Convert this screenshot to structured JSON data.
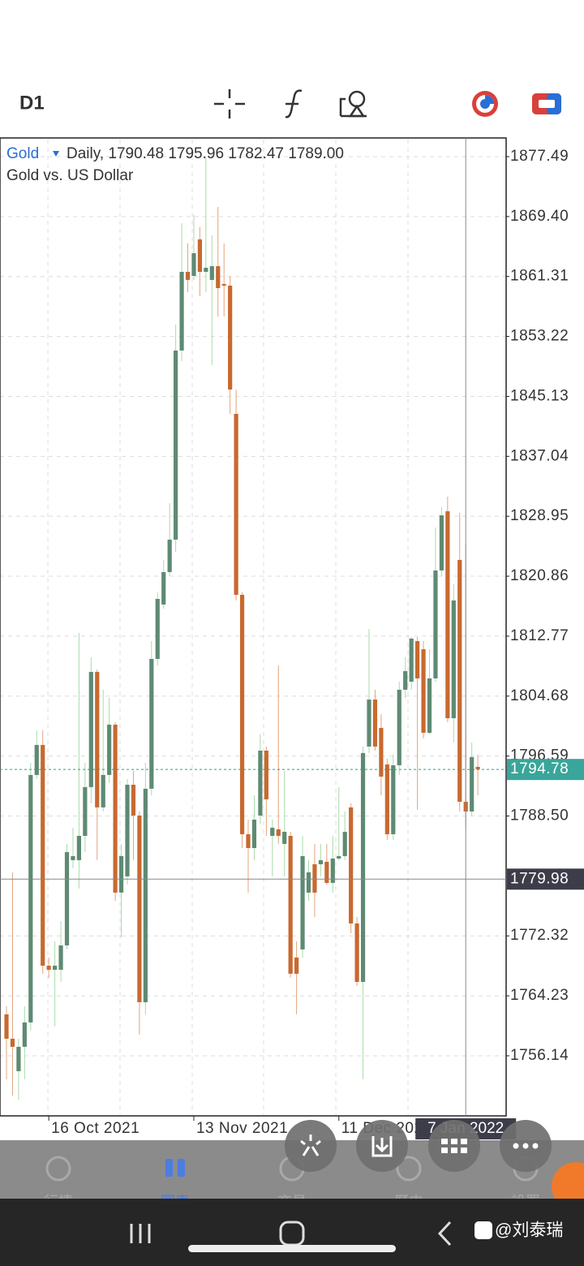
{
  "toolbar": {
    "timeframe": "D1"
  },
  "chart_data": {
    "type": "candlestick",
    "symbol": "Gold",
    "info": "Daily, 1790.48 1795.96 1782.47 1789.00",
    "description": "Gold vs. US Dollar",
    "categories": [
      null,
      null,
      null,
      null,
      null,
      null,
      null,
      "16 Oct 2021",
      null,
      null,
      null,
      null,
      null,
      null,
      null,
      null,
      null,
      null,
      null,
      null,
      null,
      null,
      null,
      null,
      null,
      null,
      null,
      null,
      null,
      null,
      null,
      "13 Nov 2021",
      null,
      null,
      null,
      null,
      null,
      null,
      null,
      null,
      null,
      null,
      null,
      null,
      null,
      null,
      null,
      null,
      null,
      null,
      null,
      null,
      null,
      null,
      null,
      "11 Dec 2021",
      null,
      null,
      null,
      null,
      null,
      null,
      null,
      null,
      null,
      null,
      null,
      null,
      null,
      null,
      null,
      null,
      null,
      null,
      null,
      null,
      null,
      null,
      null
    ],
    "open": [
      1761.73,
      1758.44,
      1754.06,
      1757.35,
      1760.64,
      1794.04,
      1798.09,
      1768.3,
      1767.75,
      1767.75,
      1771.04,
      1782.54,
      1782.54,
      1785.82,
      1792.4,
      1807.95,
      1789.66,
      1794.04,
      1800.83,
      1778.16,
      1780.35,
      1792.72,
      1788.56,
      1763.37,
      1792.18,
      1809.7,
      1817.04,
      1821.42,
      1825.8,
      1851.32,
      1861.94,
      1861.39,
      1866.32,
      1861.94,
      1860.85,
      1862.71,
      1860.3,
      1860.08,
      1842.77,
      1818.35,
      1786.04,
      1784.18,
      1788.56,
      1797.32,
      1785.82,
      1786.7,
      1784.73,
      1785.82,
      1769.4,
      1770.49,
      1778.16,
      1781.99,
      1781.99,
      1782.32,
      1779.47,
      1782.76,
      1783.09,
      1789.66,
      1774.0,
      1766.11,
      1797.87,
      1804.22,
      1800.39,
      1795.46,
      1786.04,
      1795.35,
      1805.54,
      1806.63,
      1812.11,
      1811.01,
      1799.73,
      1807.07,
      1821.64,
      1829.63,
      1801.7,
      1823.06,
      1790.42,
      1789.11,
      1795.13
    ],
    "high": [
      1762.83,
      1780.9,
      1758.44,
      1762.83,
      1795.68,
      1800.06,
      1800.06,
      1769.4,
      1771.59,
      1774.32,
      1784.73,
      1786.92,
      1813.2,
      1795.68,
      1809.92,
      1808.28,
      1805.54,
      1804.44,
      1801.16,
      1784.73,
      1793.49,
      1794.59,
      1789.11,
      1795.68,
      1812.11,
      1818.68,
      1823.06,
      1830.73,
      1854.82,
      1868.51,
      1865.77,
      1869.61,
      1867.96,
      1877.27,
      1866.87,
      1870.7,
      1865.77,
      1861.39,
      1846.06,
      1818.68,
      1788.01,
      1791.3,
      1799.51,
      1797.87,
      1788.01,
      1808.82,
      1794.59,
      1786.37,
      1771.59,
      1785.82,
      1782.54,
      1784.73,
      1784.73,
      1784.73,
      1785.82,
      1792.4,
      1789.11,
      1790.21,
      1774.87,
      1797.87,
      1813.75,
      1805.54,
      1802.25,
      1796.23,
      1796.78,
      1806.63,
      1809.92,
      1812.66,
      1812.66,
      1812.11,
      1811.01,
      1827.44,
      1830.18,
      1831.6,
      1819.78,
      1829.41,
      1825.25,
      1798.42,
      1796.78
    ],
    "low": [
      1752.97,
      1750.78,
      1750.23,
      1752.97,
      1759.54,
      1793.49,
      1767.21,
      1766.66,
      1760.09,
      1766.11,
      1770.49,
      1781.44,
      1778.71,
      1783.63,
      1790.21,
      1782.54,
      1789.11,
      1792.94,
      1777.06,
      1772.13,
      1779.25,
      1782.54,
      1758.99,
      1761.73,
      1791.3,
      1808.82,
      1816.49,
      1820.87,
      1824.16,
      1849.89,
      1859.2,
      1860.85,
      1858.66,
      1859.2,
      1849.35,
      1855.92,
      1855.92,
      1842.77,
      1817.59,
      1784.18,
      1778.16,
      1782.54,
      1787.47,
      1785.82,
      1780.35,
      1784.73,
      1780.35,
      1766.66,
      1761.73,
      1769.4,
      1777.06,
      1774.87,
      1780.35,
      1779.25,
      1778.16,
      1782.54,
      1782.54,
      1772.68,
      1765.56,
      1752.97,
      1797.0,
      1797.32,
      1791.3,
      1785.28,
      1785.28,
      1794.04,
      1804.44,
      1805.54,
      1789.33,
      1798.97,
      1799.51,
      1806.63,
      1820.87,
      1801.16,
      1798.42,
      1789.11,
      1786.92,
      1788.56,
      1791.3
    ],
    "close": [
      1758.44,
      1757.35,
      1757.35,
      1760.64,
      1794.04,
      1798.09,
      1768.3,
      1767.75,
      1768.3,
      1771.04,
      1783.63,
      1783.09,
      1785.82,
      1792.4,
      1807.95,
      1789.66,
      1794.04,
      1800.83,
      1778.16,
      1783.09,
      1792.72,
      1788.56,
      1763.37,
      1792.18,
      1809.7,
      1817.8,
      1821.42,
      1825.8,
      1851.32,
      1861.94,
      1860.85,
      1864.46,
      1861.94,
      1862.49,
      1862.71,
      1859.75,
      1860.08,
      1846.06,
      1818.35,
      1786.04,
      1784.18,
      1788.01,
      1797.32,
      1790.75,
      1786.92,
      1785.82,
      1786.37,
      1767.21,
      1767.21,
      1783.09,
      1780.9,
      1778.16,
      1782.54,
      1779.47,
      1782.76,
      1783.09,
      1786.37,
      1774.0,
      1766.11,
      1797.0,
      1804.22,
      1797.87,
      1793.82,
      1786.04,
      1795.35,
      1805.54,
      1808.06,
      1812.44,
      1807.07,
      1799.73,
      1807.07,
      1821.64,
      1829.08,
      1801.7,
      1817.59,
      1790.42,
      1789.11,
      1796.45,
      1794.81
    ],
    "up_color": "#5e8a73",
    "down_color": "#c8692f",
    "ylim": [
      1748.03,
      1880.01
    ],
    "yticks": [
      1877.49,
      {
        "value": 1869.4,
        "label": "1869.40"
      },
      1861.31,
      1853.22,
      1845.13,
      1837.04,
      1828.95,
      1820.86,
      1812.77,
      1804.68,
      1796.59,
      {
        "value": 1788.5,
        "label": "1788.50"
      },
      1772.32,
      1764.23,
      1756.14
    ],
    "grid": true,
    "current_price": 1794.78,
    "crosshair": {
      "price": 1779.98,
      "date": "7 Jan 2022"
    }
  },
  "tab_bar": {
    "items": [
      "行情",
      "圖表",
      "交易",
      "歷史",
      "設置"
    ],
    "active": 1
  },
  "watermark": "@刘泰瑞"
}
